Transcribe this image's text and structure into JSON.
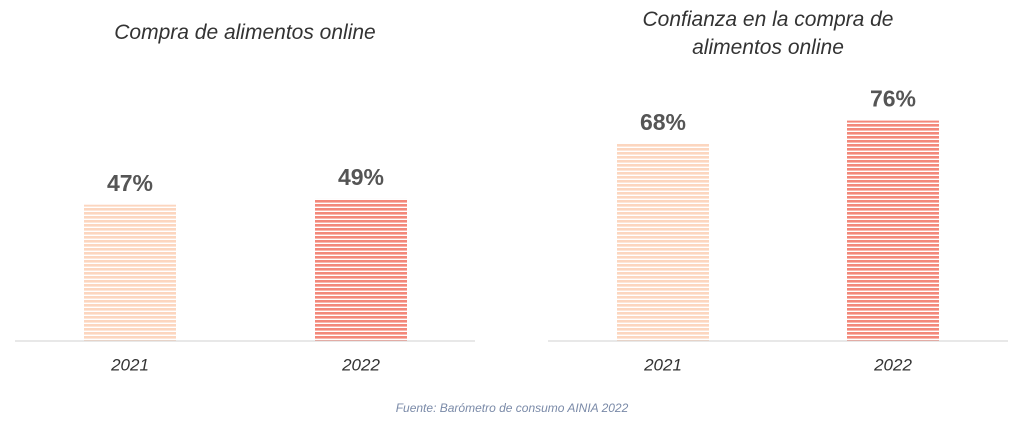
{
  "chart_data": [
    {
      "type": "bar",
      "title": "Compra de alimentos online",
      "categories": [
        "2021",
        "2022"
      ],
      "values": [
        47,
        49
      ],
      "value_labels": [
        "47%",
        "49%"
      ],
      "colors": [
        "#fcd6bf",
        "#f3887a"
      ],
      "ylim": [
        0,
        100
      ]
    },
    {
      "type": "bar",
      "title": "Confianza en la compra de alimentos online",
      "categories": [
        "2021",
        "2022"
      ],
      "values": [
        68,
        76
      ],
      "value_labels": [
        "68%",
        "76%"
      ],
      "colors": [
        "#fcd6bf",
        "#f3887a"
      ],
      "ylim": [
        0,
        100
      ]
    }
  ],
  "source": "Fuente: Barómetro de consumo AINIA 2022"
}
